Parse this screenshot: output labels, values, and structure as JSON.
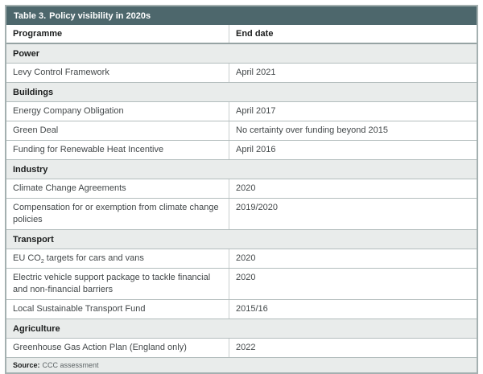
{
  "table": {
    "title_prefix": "Table 3.",
    "title_rest": "Policy visibility in 2020s",
    "columns": [
      "Programme",
      "End date"
    ],
    "rows": [
      {
        "type": "section",
        "label": "Power"
      },
      {
        "type": "data",
        "programme": "Levy Control Framework",
        "end_date": "April 2021"
      },
      {
        "type": "section",
        "label": "Buildings"
      },
      {
        "type": "data",
        "programme": "Energy Company Obligation",
        "end_date": "April 2017"
      },
      {
        "type": "data",
        "programme": "Green Deal",
        "end_date": "No certainty over funding beyond 2015"
      },
      {
        "type": "data",
        "programme": "Funding for Renewable Heat Incentive",
        "end_date": "April 2016"
      },
      {
        "type": "section",
        "label": "Industry"
      },
      {
        "type": "data",
        "programme": "Climate Change Agreements",
        "end_date": "2020"
      },
      {
        "type": "data",
        "programme": "Compensation for or exemption from climate change policies",
        "end_date": "2019/2020"
      },
      {
        "type": "section",
        "label": "Transport"
      },
      {
        "type": "data",
        "programme_parts": [
          {
            "text": "EU CO"
          },
          {
            "text": "2",
            "subscript": true
          },
          {
            "text": " targets for cars and vans"
          }
        ],
        "programme": "EU CO2 targets for cars and vans",
        "end_date": "2020"
      },
      {
        "type": "data",
        "programme": "Electric vehicle support package to tackle financial and non-financial barriers",
        "end_date": "2020"
      },
      {
        "type": "data",
        "programme": "Local Sustainable Transport Fund",
        "end_date": "2015/16"
      },
      {
        "type": "section",
        "label": "Agriculture"
      },
      {
        "type": "data",
        "programme": "Greenhouse Gas Action Plan (England only)",
        "end_date": "2022"
      }
    ],
    "source_label": "Source:",
    "source_text": "CCC assessment"
  },
  "colors": {
    "title_bar_bg": "#4d676c",
    "title_text": "#ffffff",
    "section_row_bg": "#e9eceb",
    "source_row_bg": "#e9eceb",
    "data_row_bg": "#ffffff",
    "outer_border": "#a4b0b0",
    "row_border": "#b3bdbd",
    "header_bottom_border": "#96a3a3",
    "column_divider": "#c9cfcf",
    "header_text": "#1c1e1e",
    "body_text": "#43484a",
    "source_text_color": "#5c6365"
  }
}
